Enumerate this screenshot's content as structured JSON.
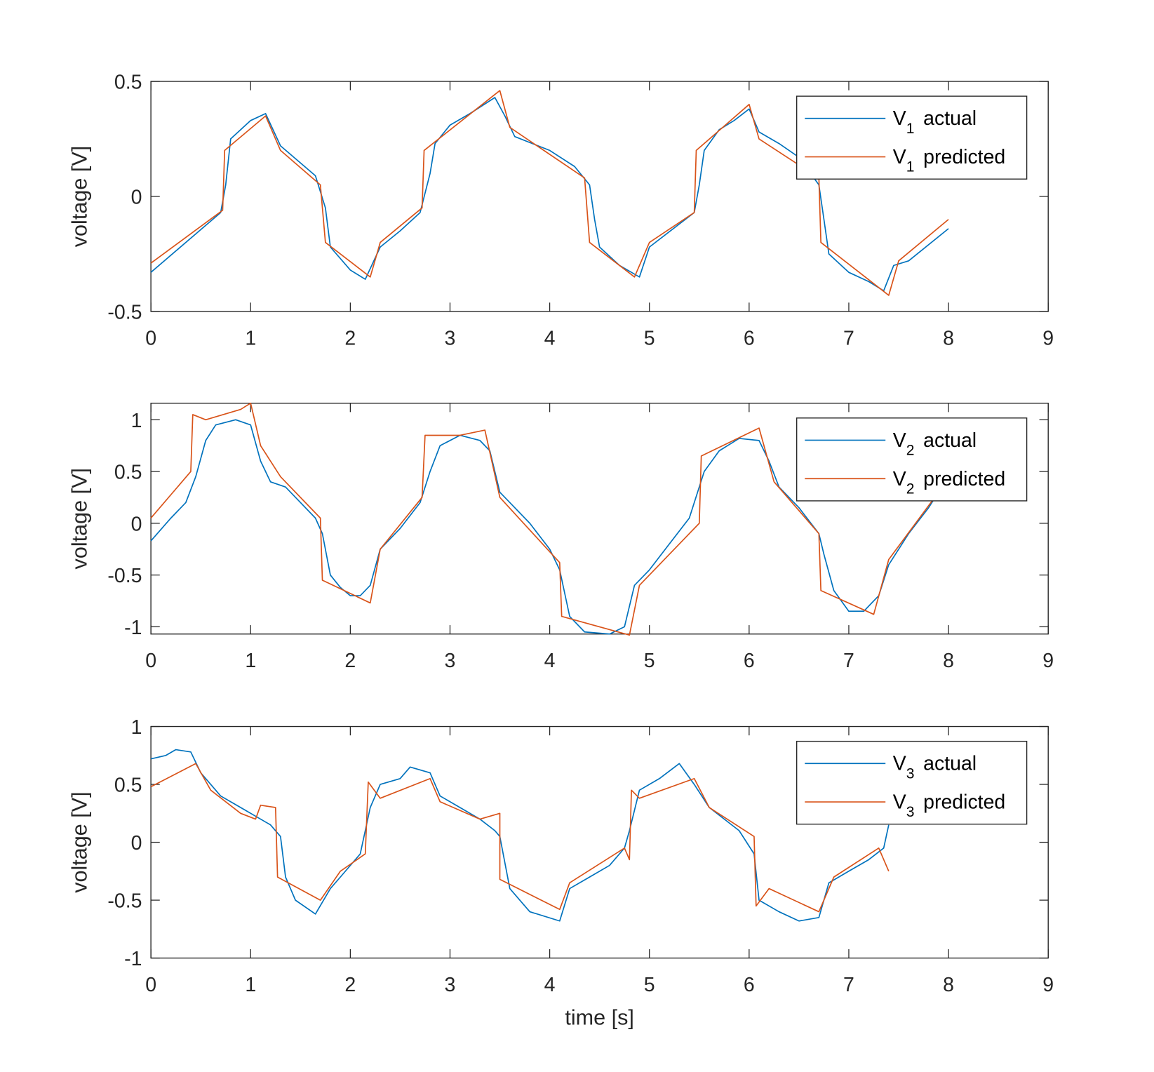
{
  "colors": {
    "actual": "#0072BD",
    "predicted": "#D95319",
    "axis": "#262626"
  },
  "chart_data": [
    {
      "type": "line",
      "ylabel": "voltage [V]",
      "xlabel": "",
      "xlim": [
        0,
        9
      ],
      "ylim": [
        -0.5,
        0.5
      ],
      "xticks": [
        "0",
        "1",
        "2",
        "3",
        "4",
        "5",
        "6",
        "7",
        "8",
        "9"
      ],
      "yticks": [
        "-0.5",
        "0",
        "0.5"
      ],
      "ytick_values": [
        -0.5,
        0,
        0.5
      ],
      "legend_position": "top-right",
      "series": [
        {
          "name": {
            "base": "V",
            "sub": "1",
            "suffix": "actual"
          },
          "color": "#0072BD",
          "points": [
            [
              0,
              -0.33
            ],
            [
              0.7,
              -0.07
            ],
            [
              0.75,
              0.05
            ],
            [
              0.8,
              0.25
            ],
            [
              1.0,
              0.33
            ],
            [
              1.15,
              0.36
            ],
            [
              1.3,
              0.22
            ],
            [
              1.65,
              0.09
            ],
            [
              1.75,
              -0.05
            ],
            [
              1.8,
              -0.22
            ],
            [
              2.0,
              -0.32
            ],
            [
              2.15,
              -0.36
            ],
            [
              2.3,
              -0.22
            ],
            [
              2.5,
              -0.15
            ],
            [
              2.7,
              -0.07
            ],
            [
              2.8,
              0.1
            ],
            [
              2.85,
              0.23
            ],
            [
              3.0,
              0.31
            ],
            [
              3.2,
              0.36
            ],
            [
              3.45,
              0.43
            ],
            [
              3.55,
              0.35
            ],
            [
              3.65,
              0.26
            ],
            [
              4.0,
              0.2
            ],
            [
              4.25,
              0.13
            ],
            [
              4.4,
              0.05
            ],
            [
              4.45,
              -0.1
            ],
            [
              4.5,
              -0.22
            ],
            [
              4.7,
              -0.3
            ],
            [
              4.9,
              -0.35
            ],
            [
              5.0,
              -0.22
            ],
            [
              5.3,
              -0.12
            ],
            [
              5.45,
              -0.07
            ],
            [
              5.5,
              0.05
            ],
            [
              5.55,
              0.2
            ],
            [
              5.7,
              0.29
            ],
            [
              5.85,
              0.33
            ],
            [
              6.0,
              0.38
            ],
            [
              6.1,
              0.28
            ],
            [
              6.3,
              0.23
            ],
            [
              6.5,
              0.17
            ],
            [
              6.7,
              0.05
            ],
            [
              6.75,
              -0.1
            ],
            [
              6.8,
              -0.25
            ],
            [
              7.0,
              -0.33
            ],
            [
              7.2,
              -0.37
            ],
            [
              7.35,
              -0.41
            ],
            [
              7.45,
              -0.3
            ],
            [
              7.6,
              -0.28
            ],
            [
              8.0,
              -0.14
            ]
          ]
        },
        {
          "name": {
            "base": "V",
            "sub": "1",
            "suffix": "predicted"
          },
          "color": "#D95319",
          "points": [
            [
              0,
              -0.29
            ],
            [
              0.72,
              -0.06
            ],
            [
              0.74,
              0.2
            ],
            [
              1.15,
              0.35
            ],
            [
              1.3,
              0.2
            ],
            [
              1.7,
              0.05
            ],
            [
              1.75,
              -0.2
            ],
            [
              2.2,
              -0.35
            ],
            [
              2.3,
              -0.2
            ],
            [
              2.72,
              -0.05
            ],
            [
              2.74,
              0.2
            ],
            [
              3.5,
              0.46
            ],
            [
              3.6,
              0.3
            ],
            [
              4.35,
              0.08
            ],
            [
              4.4,
              -0.2
            ],
            [
              4.85,
              -0.35
            ],
            [
              5.0,
              -0.2
            ],
            [
              5.45,
              -0.07
            ],
            [
              5.47,
              0.2
            ],
            [
              6.0,
              0.4
            ],
            [
              6.1,
              0.25
            ],
            [
              6.7,
              0.08
            ],
            [
              6.72,
              -0.2
            ],
            [
              7.4,
              -0.43
            ],
            [
              7.5,
              -0.28
            ],
            [
              8.0,
              -0.1
            ]
          ]
        }
      ]
    },
    {
      "type": "line",
      "ylabel": "voltage [V]",
      "xlabel": "",
      "xlim": [
        0,
        9
      ],
      "ylim": [
        -1.07,
        1.16
      ],
      "xticks": [
        "0",
        "1",
        "2",
        "3",
        "4",
        "5",
        "6",
        "7",
        "8",
        "9"
      ],
      "yticks": [
        "-1",
        "-0.5",
        "0",
        "0.5",
        "1"
      ],
      "ytick_values": [
        -1,
        -0.5,
        0,
        0.5,
        1
      ],
      "legend_position": "top-right",
      "series": [
        {
          "name": {
            "base": "V",
            "sub": "2",
            "suffix": "actual"
          },
          "color": "#0072BD",
          "points": [
            [
              0,
              -0.17
            ],
            [
              0.2,
              0.05
            ],
            [
              0.35,
              0.2
            ],
            [
              0.45,
              0.45
            ],
            [
              0.55,
              0.8
            ],
            [
              0.65,
              0.95
            ],
            [
              0.85,
              1.0
            ],
            [
              1.0,
              0.95
            ],
            [
              1.1,
              0.6
            ],
            [
              1.2,
              0.4
            ],
            [
              1.35,
              0.35
            ],
            [
              1.5,
              0.2
            ],
            [
              1.65,
              0.05
            ],
            [
              1.72,
              -0.1
            ],
            [
              1.8,
              -0.5
            ],
            [
              1.9,
              -0.62
            ],
            [
              2.0,
              -0.7
            ],
            [
              2.1,
              -0.7
            ],
            [
              2.2,
              -0.6
            ],
            [
              2.3,
              -0.25
            ],
            [
              2.5,
              -0.05
            ],
            [
              2.7,
              0.2
            ],
            [
              2.8,
              0.5
            ],
            [
              2.9,
              0.75
            ],
            [
              3.1,
              0.85
            ],
            [
              3.3,
              0.8
            ],
            [
              3.4,
              0.7
            ],
            [
              3.5,
              0.3
            ],
            [
              3.6,
              0.2
            ],
            [
              3.8,
              0.0
            ],
            [
              4.0,
              -0.25
            ],
            [
              4.1,
              -0.45
            ],
            [
              4.2,
              -0.9
            ],
            [
              4.35,
              -1.05
            ],
            [
              4.6,
              -1.07
            ],
            [
              4.75,
              -1.0
            ],
            [
              4.85,
              -0.6
            ],
            [
              5.0,
              -0.45
            ],
            [
              5.2,
              -0.2
            ],
            [
              5.4,
              0.05
            ],
            [
              5.55,
              0.5
            ],
            [
              5.7,
              0.7
            ],
            [
              5.9,
              0.82
            ],
            [
              6.1,
              0.8
            ],
            [
              6.2,
              0.6
            ],
            [
              6.3,
              0.35
            ],
            [
              6.5,
              0.15
            ],
            [
              6.7,
              -0.1
            ],
            [
              6.75,
              -0.3
            ],
            [
              6.85,
              -0.65
            ],
            [
              7.0,
              -0.85
            ],
            [
              7.15,
              -0.85
            ],
            [
              7.3,
              -0.7
            ],
            [
              7.4,
              -0.4
            ],
            [
              7.6,
              -0.1
            ],
            [
              7.8,
              0.15
            ],
            [
              7.9,
              0.3
            ]
          ]
        },
        {
          "name": {
            "base": "V",
            "sub": "2",
            "suffix": "predicted"
          },
          "color": "#D95319",
          "points": [
            [
              0,
              0.05
            ],
            [
              0.4,
              0.5
            ],
            [
              0.42,
              1.05
            ],
            [
              0.55,
              1.0
            ],
            [
              0.9,
              1.1
            ],
            [
              1.0,
              1.16
            ],
            [
              1.1,
              0.75
            ],
            [
              1.3,
              0.45
            ],
            [
              1.7,
              0.05
            ],
            [
              1.72,
              -0.55
            ],
            [
              2.2,
              -0.77
            ],
            [
              2.3,
              -0.25
            ],
            [
              2.72,
              0.25
            ],
            [
              2.75,
              0.85
            ],
            [
              3.1,
              0.85
            ],
            [
              3.35,
              0.9
            ],
            [
              3.5,
              0.25
            ],
            [
              4.1,
              -0.38
            ],
            [
              4.12,
              -0.9
            ],
            [
              4.8,
              -1.08
            ],
            [
              4.9,
              -0.6
            ],
            [
              5.5,
              0.0
            ],
            [
              5.52,
              0.65
            ],
            [
              6.1,
              0.92
            ],
            [
              6.25,
              0.4
            ],
            [
              6.7,
              -0.1
            ],
            [
              6.72,
              -0.65
            ],
            [
              7.25,
              -0.88
            ],
            [
              7.4,
              -0.35
            ],
            [
              7.9,
              0.3
            ]
          ]
        }
      ]
    },
    {
      "type": "line",
      "ylabel": "voltage [V]",
      "xlabel": "time [s]",
      "xlim": [
        0,
        9
      ],
      "ylim": [
        -1,
        1
      ],
      "xticks": [
        "0",
        "1",
        "2",
        "3",
        "4",
        "5",
        "6",
        "7",
        "8",
        "9"
      ],
      "yticks": [
        "-1",
        "-0.5",
        "0",
        "0.5",
        "1"
      ],
      "ytick_values": [
        -1,
        -0.5,
        0,
        0.5,
        1
      ],
      "legend_position": "top-right",
      "series": [
        {
          "name": {
            "base": "V",
            "sub": "3",
            "suffix": "actual"
          },
          "color": "#0072BD",
          "points": [
            [
              0,
              0.72
            ],
            [
              0.15,
              0.75
            ],
            [
              0.25,
              0.8
            ],
            [
              0.4,
              0.78
            ],
            [
              0.5,
              0.6
            ],
            [
              0.7,
              0.4
            ],
            [
              0.9,
              0.3
            ],
            [
              1.1,
              0.2
            ],
            [
              1.2,
              0.15
            ],
            [
              1.3,
              0.05
            ],
            [
              1.35,
              -0.3
            ],
            [
              1.45,
              -0.5
            ],
            [
              1.65,
              -0.62
            ],
            [
              1.8,
              -0.4
            ],
            [
              1.9,
              -0.3
            ],
            [
              2.1,
              -0.1
            ],
            [
              2.2,
              0.3
            ],
            [
              2.3,
              0.5
            ],
            [
              2.5,
              0.55
            ],
            [
              2.6,
              0.65
            ],
            [
              2.8,
              0.6
            ],
            [
              2.9,
              0.4
            ],
            [
              3.1,
              0.3
            ],
            [
              3.3,
              0.2
            ],
            [
              3.45,
              0.1
            ],
            [
              3.5,
              0.05
            ],
            [
              3.6,
              -0.4
            ],
            [
              3.8,
              -0.6
            ],
            [
              4.1,
              -0.68
            ],
            [
              4.2,
              -0.4
            ],
            [
              4.4,
              -0.3
            ],
            [
              4.6,
              -0.2
            ],
            [
              4.75,
              -0.05
            ],
            [
              4.8,
              0.1
            ],
            [
              4.9,
              0.45
            ],
            [
              5.1,
              0.55
            ],
            [
              5.3,
              0.68
            ],
            [
              5.45,
              0.5
            ],
            [
              5.6,
              0.3
            ],
            [
              5.9,
              0.1
            ],
            [
              6.05,
              -0.1
            ],
            [
              6.1,
              -0.5
            ],
            [
              6.3,
              -0.6
            ],
            [
              6.5,
              -0.68
            ],
            [
              6.7,
              -0.65
            ],
            [
              6.8,
              -0.35
            ],
            [
              7.0,
              -0.25
            ],
            [
              7.2,
              -0.15
            ],
            [
              7.35,
              -0.05
            ],
            [
              7.4,
              0.15
            ]
          ]
        },
        {
          "name": {
            "base": "V",
            "sub": "3",
            "suffix": "predicted"
          },
          "color": "#D95319",
          "points": [
            [
              0,
              0.48
            ],
            [
              0.45,
              0.68
            ],
            [
              0.6,
              0.45
            ],
            [
              0.9,
              0.25
            ],
            [
              1.05,
              0.2
            ],
            [
              1.1,
              0.32
            ],
            [
              1.25,
              0.3
            ],
            [
              1.27,
              -0.3
            ],
            [
              1.7,
              -0.5
            ],
            [
              1.9,
              -0.25
            ],
            [
              2.15,
              -0.1
            ],
            [
              2.18,
              0.52
            ],
            [
              2.3,
              0.38
            ],
            [
              2.8,
              0.55
            ],
            [
              2.9,
              0.35
            ],
            [
              3.3,
              0.2
            ],
            [
              3.5,
              0.25
            ],
            [
              3.5,
              -0.32
            ],
            [
              4.1,
              -0.58
            ],
            [
              4.2,
              -0.35
            ],
            [
              4.75,
              -0.05
            ],
            [
              4.8,
              -0.15
            ],
            [
              4.82,
              0.45
            ],
            [
              4.9,
              0.38
            ],
            [
              5.45,
              0.55
            ],
            [
              5.6,
              0.3
            ],
            [
              6.05,
              0.05
            ],
            [
              6.07,
              -0.55
            ],
            [
              6.2,
              -0.4
            ],
            [
              6.7,
              -0.6
            ],
            [
              6.85,
              -0.3
            ],
            [
              7.3,
              -0.05
            ],
            [
              7.4,
              -0.25
            ]
          ]
        }
      ]
    }
  ]
}
